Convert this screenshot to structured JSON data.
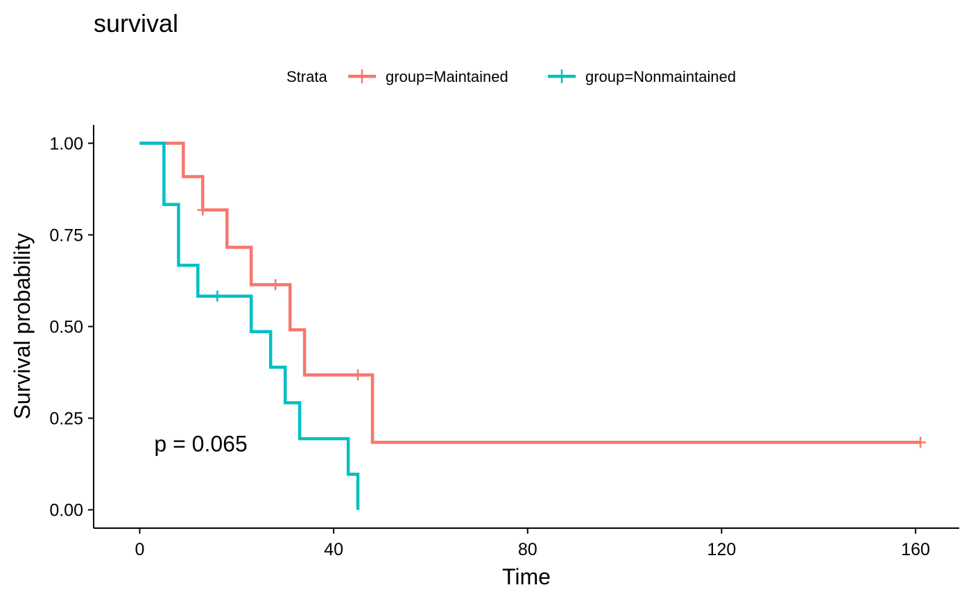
{
  "chart_data": {
    "type": "line",
    "title": "survival",
    "xlabel": "Time",
    "ylabel": "Survival probability",
    "xlim": [
      -9.5,
      169
    ],
    "ylim": [
      -0.05,
      1.05
    ],
    "xticks": [
      0,
      40,
      80,
      120,
      160
    ],
    "yticks": [
      0,
      0.25,
      0.5,
      0.75,
      1
    ],
    "xtick_labels": [
      "0",
      "40",
      "80",
      "120",
      "160"
    ],
    "ytick_labels": [
      "0.00",
      "0.25",
      "0.50",
      "0.75",
      "1.00"
    ],
    "grid": false,
    "legend": {
      "title": "Strata",
      "position": "top"
    },
    "annotation": {
      "text": "p = 0.065",
      "x": 3,
      "y": 0.18
    },
    "series": [
      {
        "name": "group=Maintained",
        "color": "#F8766D",
        "steps": [
          [
            0,
            1
          ],
          [
            9,
            0.909
          ],
          [
            13,
            0.818
          ],
          [
            18,
            0.716
          ],
          [
            23,
            0.614
          ],
          [
            31,
            0.491
          ],
          [
            34,
            0.368
          ],
          [
            48,
            0.184
          ],
          [
            161,
            0.184
          ]
        ],
        "censored": [
          [
            13,
            0.818
          ],
          [
            28,
            0.614
          ],
          [
            45,
            0.368
          ],
          [
            161,
            0.184
          ]
        ]
      },
      {
        "name": "group=Nonmaintained",
        "color": "#00BFC4",
        "steps": [
          [
            0,
            1
          ],
          [
            5,
            0.833
          ],
          [
            8,
            0.667
          ],
          [
            12,
            0.583
          ],
          [
            23,
            0.486
          ],
          [
            27,
            0.389
          ],
          [
            30,
            0.292
          ],
          [
            33,
            0.194
          ],
          [
            43,
            0.097
          ],
          [
            45,
            0
          ]
        ],
        "censored": [
          [
            16,
            0.583
          ]
        ]
      }
    ]
  }
}
